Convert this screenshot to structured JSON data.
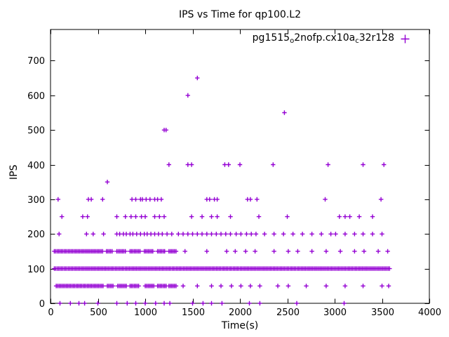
{
  "legend": {
    "parts": [
      {
        "t": "pg1515"
      },
      {
        "t": "o"
      },
      {
        "t": "2nofp.cx10a"
      },
      {
        "t": "c"
      },
      {
        "t": "32r128"
      }
    ]
  },
  "chart_data": {
    "type": "scatter",
    "title": "IPS vs Time for qp100.L2",
    "xlabel": "Time(s)",
    "ylabel": "IPS",
    "xlim": [
      0,
      4000
    ],
    "ylim": [
      0,
      790
    ],
    "xticks": [
      0,
      500,
      1000,
      1500,
      2000,
      2500,
      3000,
      3500,
      4000
    ],
    "yticks": [
      0,
      100,
      200,
      300,
      400,
      500,
      600,
      700
    ],
    "grid": false,
    "legend_position": "top-right-inside",
    "marker_color": "#9400d3",
    "series": [
      {
        "name": "pg1515_o2nofp.cx10a_c32r128",
        "color": "#9400d3",
        "marker": "plus",
        "dense_runs": [
          {
            "y": 100,
            "step": 15,
            "runs": [
              [
                40,
                3590
              ]
            ]
          },
          {
            "y": 150,
            "step": 15,
            "runs": [
              [
                40,
                560
              ],
              [
                590,
                660
              ],
              [
                700,
                800
              ],
              [
                840,
                950
              ],
              [
                990,
                1090
              ],
              [
                1130,
                1210
              ],
              [
                1250,
                1330
              ]
            ]
          },
          {
            "y": 50,
            "step": 15,
            "runs": [
              [
                60,
                560
              ],
              [
                600,
                670
              ],
              [
                710,
                800
              ],
              [
                840,
                940
              ],
              [
                1000,
                1090
              ],
              [
                1130,
                1220
              ],
              [
                1250,
                1330
              ]
            ]
          }
        ],
        "points": [
          [
            100,
            0
          ],
          [
            210,
            0
          ],
          [
            300,
            0
          ],
          [
            360,
            0
          ],
          [
            500,
            0
          ],
          [
            700,
            0
          ],
          [
            810,
            0
          ],
          [
            900,
            0
          ],
          [
            1000,
            0
          ],
          [
            1110,
            0
          ],
          [
            1200,
            0
          ],
          [
            1260,
            0
          ],
          [
            1500,
            0
          ],
          [
            1610,
            0
          ],
          [
            1700,
            0
          ],
          [
            1810,
            0
          ],
          [
            2100,
            0
          ],
          [
            2210,
            0
          ],
          [
            2600,
            0
          ],
          [
            3100,
            0
          ],
          [
            1400,
            50
          ],
          [
            1550,
            50
          ],
          [
            1700,
            50
          ],
          [
            1800,
            50
          ],
          [
            1910,
            50
          ],
          [
            2010,
            50
          ],
          [
            2110,
            50
          ],
          [
            2210,
            50
          ],
          [
            2400,
            50
          ],
          [
            2510,
            50
          ],
          [
            2700,
            50
          ],
          [
            2910,
            50
          ],
          [
            3110,
            50
          ],
          [
            3300,
            50
          ],
          [
            3500,
            50
          ],
          [
            3570,
            50
          ],
          [
            1420,
            150
          ],
          [
            1650,
            150
          ],
          [
            1860,
            150
          ],
          [
            1950,
            150
          ],
          [
            2060,
            150
          ],
          [
            2160,
            150
          ],
          [
            2360,
            150
          ],
          [
            2510,
            150
          ],
          [
            2610,
            150
          ],
          [
            2760,
            150
          ],
          [
            2910,
            150
          ],
          [
            3060,
            150
          ],
          [
            3210,
            150
          ],
          [
            3310,
            150
          ],
          [
            3460,
            150
          ],
          [
            3560,
            150
          ],
          [
            90,
            200
          ],
          [
            380,
            200
          ],
          [
            450,
            200
          ],
          [
            560,
            200
          ],
          [
            700,
            200
          ],
          [
            730,
            200
          ],
          [
            770,
            200
          ],
          [
            800,
            200
          ],
          [
            840,
            200
          ],
          [
            870,
            200
          ],
          [
            910,
            200
          ],
          [
            950,
            200
          ],
          [
            990,
            200
          ],
          [
            1020,
            200
          ],
          [
            1060,
            200
          ],
          [
            1100,
            200
          ],
          [
            1140,
            200
          ],
          [
            1180,
            200
          ],
          [
            1230,
            200
          ],
          [
            1280,
            200
          ],
          [
            1350,
            200
          ],
          [
            1400,
            200
          ],
          [
            1450,
            200
          ],
          [
            1500,
            200
          ],
          [
            1550,
            200
          ],
          [
            1600,
            200
          ],
          [
            1650,
            200
          ],
          [
            1700,
            200
          ],
          [
            1750,
            200
          ],
          [
            1800,
            200
          ],
          [
            1850,
            200
          ],
          [
            1900,
            200
          ],
          [
            1960,
            200
          ],
          [
            2010,
            200
          ],
          [
            2070,
            200
          ],
          [
            2120,
            200
          ],
          [
            2170,
            200
          ],
          [
            2260,
            200
          ],
          [
            2360,
            200
          ],
          [
            2460,
            200
          ],
          [
            2560,
            200
          ],
          [
            2660,
            200
          ],
          [
            2760,
            200
          ],
          [
            2860,
            200
          ],
          [
            2960,
            200
          ],
          [
            3010,
            200
          ],
          [
            3110,
            200
          ],
          [
            3210,
            200
          ],
          [
            3300,
            200
          ],
          [
            3400,
            200
          ],
          [
            3500,
            200
          ],
          [
            120,
            250
          ],
          [
            340,
            250
          ],
          [
            390,
            250
          ],
          [
            700,
            250
          ],
          [
            790,
            250
          ],
          [
            850,
            250
          ],
          [
            900,
            250
          ],
          [
            960,
            250
          ],
          [
            1000,
            250
          ],
          [
            1100,
            250
          ],
          [
            1150,
            250
          ],
          [
            1200,
            250
          ],
          [
            1490,
            250
          ],
          [
            1600,
            250
          ],
          [
            1700,
            250
          ],
          [
            1760,
            250
          ],
          [
            1900,
            250
          ],
          [
            2200,
            250
          ],
          [
            2500,
            250
          ],
          [
            3050,
            250
          ],
          [
            3110,
            250
          ],
          [
            3160,
            250
          ],
          [
            3260,
            250
          ],
          [
            3400,
            250
          ],
          [
            80,
            300
          ],
          [
            400,
            300
          ],
          [
            430,
            300
          ],
          [
            550,
            300
          ],
          [
            860,
            300
          ],
          [
            900,
            300
          ],
          [
            950,
            300
          ],
          [
            970,
            300
          ],
          [
            1010,
            300
          ],
          [
            1050,
            300
          ],
          [
            1100,
            300
          ],
          [
            1130,
            300
          ],
          [
            1170,
            300
          ],
          [
            1650,
            300
          ],
          [
            1680,
            300
          ],
          [
            1730,
            300
          ],
          [
            1760,
            300
          ],
          [
            2080,
            300
          ],
          [
            2110,
            300
          ],
          [
            2180,
            300
          ],
          [
            2900,
            300
          ],
          [
            3490,
            300
          ],
          [
            600,
            350
          ],
          [
            1250,
            400
          ],
          [
            1450,
            400
          ],
          [
            1490,
            400
          ],
          [
            1840,
            400
          ],
          [
            1880,
            400
          ],
          [
            2000,
            400
          ],
          [
            2350,
            400
          ],
          [
            2930,
            400
          ],
          [
            3300,
            400
          ],
          [
            3520,
            400
          ],
          [
            1200,
            500
          ],
          [
            1220,
            500
          ],
          [
            2470,
            550
          ],
          [
            1450,
            600
          ],
          [
            1550,
            650
          ]
        ]
      }
    ]
  }
}
